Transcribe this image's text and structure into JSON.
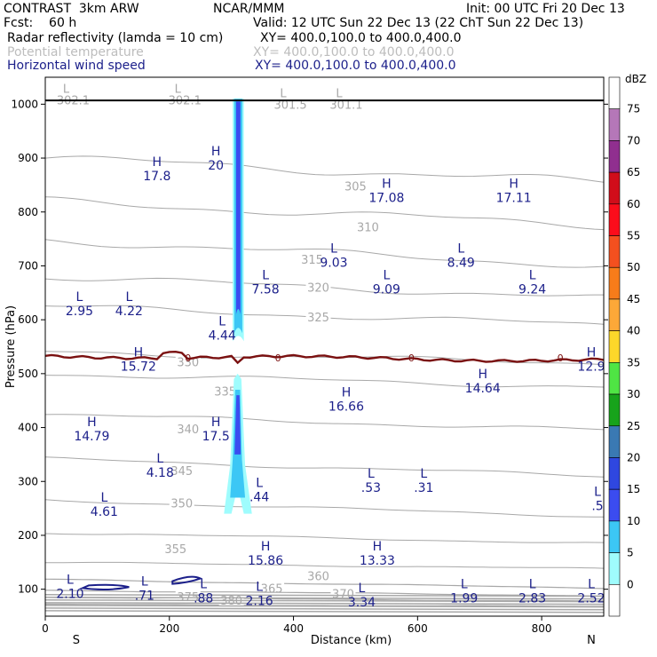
{
  "header": {
    "left_title": "CONTRAST  3km ARW",
    "center_title": "NCAR/MMM",
    "init": "Init: 00 UTC Fri 20 Dec 13",
    "fcst": "Fcst:    60 h",
    "valid": "Valid: 12 UTC Sun 22 Dec 13 (22 ChT Sun 22 Dec 13)",
    "field1_name": "Radar reflectivity (lamda = 10 cm)",
    "field1_xy": "XY= 400.0,100.0 to 400.0,400.0",
    "field2_name": "Potential temperature",
    "field2_xy": "XY= 400.0,100.0 to 400.0,400.0",
    "field3_name": "Horizontal wind speed",
    "field3_xy": "XY= 400.0,100.0 to 400.0,400.0"
  },
  "colors": {
    "theta": "#a8a8a8",
    "wind": "#1b1f8a",
    "freezing": "#7a1010",
    "ground": "#000000"
  },
  "chart_data": {
    "type": "cross-section",
    "xlabel": "Distance (km)",
    "ylabel": "Pressure (hPa)",
    "xlim": [
      0,
      900
    ],
    "ylim": [
      1050,
      50
    ],
    "x_ticks": [
      0,
      200,
      400,
      600,
      800
    ],
    "y_ticks": [
      100,
      200,
      300,
      400,
      500,
      600,
      700,
      800,
      900,
      1000
    ],
    "x_end_labels": {
      "left": "S",
      "right": "N"
    },
    "colorbar": {
      "unit": "dBZ",
      "levels": [
        0,
        5,
        10,
        15,
        20,
        25,
        30,
        35,
        40,
        45,
        50,
        55,
        60,
        65,
        70,
        75
      ],
      "colors": [
        "#ffffff",
        "#9ffcfd",
        "#3cc7f5",
        "#3b4cf0",
        "#2f47e0",
        "#3a79b3",
        "#17a31b",
        "#4fe544",
        "#fdd72a",
        "#fda838",
        "#f77c1a",
        "#f4501f",
        "#fb0d1b",
        "#d10d1a",
        "#902f8f",
        "#b577b8",
        "#ffffff"
      ]
    },
    "theta_contours": [
      {
        "level": "305",
        "y_left": 900,
        "y_right": 855,
        "label_x": 500,
        "label_p": 848
      },
      {
        "level": "310",
        "y_left": 820,
        "y_right": 775,
        "label_x": 520,
        "label_p": 772
      },
      {
        "level": "315",
        "y_left": 748,
        "y_right": 700,
        "label_x": 430,
        "label_p": 712
      },
      {
        "level": "320",
        "y_left": 680,
        "y_right": 640,
        "label_x": 440,
        "label_p": 660
      },
      {
        "level": "325",
        "y_left": 625,
        "y_right": 590,
        "label_x": 440,
        "label_p": 605
      },
      {
        "level": "330",
        "y_left": 540,
        "y_right": 520,
        "label_x": 230,
        "label_p": 522
      },
      {
        "level": "335",
        "y_left": 500,
        "y_right": 475,
        "label_x": 290,
        "label_p": 468
      },
      {
        "level": "340",
        "y_left": 425,
        "y_right": 395,
        "label_x": 230,
        "label_p": 398
      },
      {
        "level": "345",
        "y_left": 342,
        "y_right": 310,
        "label_x": 220,
        "label_p": 320
      },
      {
        "level": "350",
        "y_left": 265,
        "y_right": 235,
        "label_x": 220,
        "label_p": 260
      },
      {
        "level": "355",
        "y_left": 205,
        "y_right": 185,
        "label_x": 210,
        "label_p": 175
      },
      {
        "level": "360",
        "y_left": 150,
        "y_right": 138,
        "label_x": 440,
        "label_p": 125
      },
      {
        "level": "365",
        "y_left": 118,
        "y_right": 102,
        "label_x": 365,
        "label_p": 102
      },
      {
        "level": "370",
        "y_left": 98,
        "y_right": 88,
        "label_x": 480,
        "label_p": 92
      },
      {
        "level": "375",
        "y_left": 85,
        "y_right": 78,
        "label_x": 230,
        "label_p": 86
      },
      {
        "level": "380",
        "y_left": 72,
        "y_right": 68,
        "label_x": 300,
        "label_p": 80
      }
    ],
    "theta_surface_labels": [
      {
        "text": "302.1",
        "x": 45,
        "p": 1008
      },
      {
        "text": "302.1",
        "x": 225,
        "p": 1008
      },
      {
        "text": "301.5",
        "x": 395,
        "p": 1000
      },
      {
        "text": "301.1",
        "x": 485,
        "p": 1000
      }
    ],
    "wind_extrema": [
      {
        "kind": "L",
        "value": "2.10",
        "x": 40,
        "p": 100
      },
      {
        "kind": "L",
        "value": ".71",
        "x": 160,
        "p": 97
      },
      {
        "kind": "L",
        "value": ".88",
        "x": 255,
        "p": 92
      },
      {
        "kind": "L",
        "value": "2.16",
        "x": 345,
        "p": 87
      },
      {
        "kind": "L",
        "value": "3.34",
        "x": 510,
        "p": 85
      },
      {
        "kind": "L",
        "value": "1.99",
        "x": 675,
        "p": 92
      },
      {
        "kind": "L",
        "value": "2.83",
        "x": 785,
        "p": 92
      },
      {
        "kind": "L",
        "value": "2.52",
        "x": 880,
        "p": 92
      },
      {
        "kind": "H",
        "value": "15.86",
        "x": 355,
        "p": 162
      },
      {
        "kind": "H",
        "value": "13.33",
        "x": 535,
        "p": 162
      },
      {
        "kind": "L",
        "value": "4.61",
        "x": 95,
        "p": 253
      },
      {
        "kind": "L",
        "value": ".44",
        "x": 345,
        "p": 280
      },
      {
        "kind": "L",
        "value": ".53",
        "x": 525,
        "p": 297
      },
      {
        "kind": "L",
        "value": ".31",
        "x": 610,
        "p": 297
      },
      {
        "kind": "L",
        "value": "4.18",
        "x": 185,
        "p": 325
      },
      {
        "kind": "L",
        "value": ".5",
        "x": 890,
        "p": 263
      },
      {
        "kind": "H",
        "value": "14.79",
        "x": 75,
        "p": 393
      },
      {
        "kind": "H",
        "value": "17.5",
        "x": 275,
        "p": 393
      },
      {
        "kind": "H",
        "value": "16.66",
        "x": 485,
        "p": 448
      },
      {
        "kind": "H",
        "value": "14.64",
        "x": 705,
        "p": 482
      },
      {
        "kind": "H",
        "value": "15.72",
        "x": 150,
        "p": 522
      },
      {
        "kind": "H",
        "value": "12.9",
        "x": 880,
        "p": 522
      },
      {
        "kind": "L",
        "value": "4.44",
        "x": 285,
        "p": 580
      },
      {
        "kind": "L",
        "value": "2.95",
        "x": 55,
        "p": 625
      },
      {
        "kind": "L",
        "value": "4.22",
        "x": 135,
        "p": 625
      },
      {
        "kind": "L",
        "value": "7.58",
        "x": 355,
        "p": 665
      },
      {
        "kind": "L",
        "value": "9.09",
        "x": 550,
        "p": 665
      },
      {
        "kind": "L",
        "value": "9.24",
        "x": 785,
        "p": 665
      },
      {
        "kind": "L",
        "value": "9.03",
        "x": 465,
        "p": 715
      },
      {
        "kind": "L",
        "value": "8.49",
        "x": 670,
        "p": 715
      },
      {
        "kind": "H",
        "value": "17.08",
        "x": 550,
        "p": 835
      },
      {
        "kind": "H",
        "value": "17.11",
        "x": 755,
        "p": 835
      },
      {
        "kind": "H",
        "value": "17.8",
        "x": 180,
        "p": 875
      },
      {
        "kind": "H",
        "value": "20",
        "x": 275,
        "p": 895
      }
    ],
    "freezing_level_label": "0",
    "freezing_level_p": 525,
    "surface_p": 1007
  }
}
